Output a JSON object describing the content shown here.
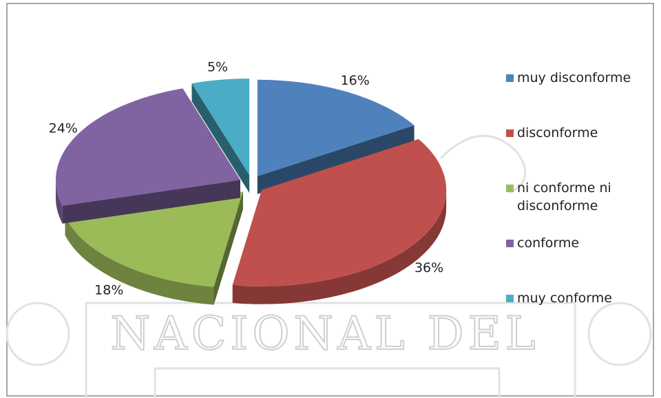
{
  "chart_data": {
    "type": "pie",
    "categories": [
      "muy disconforme",
      "disconforme",
      "ni conforme ni disconforme",
      "conforme",
      "muy conforme"
    ],
    "values": [
      16,
      36,
      18,
      24,
      5
    ],
    "value_labels": [
      "16%",
      "36%",
      "18%",
      "24%",
      "5%"
    ],
    "colors": [
      "#4f81bd",
      "#c0504d",
      "#9bbb59",
      "#8064a2",
      "#4bacc6"
    ],
    "legend": "right",
    "watermark": "NACIONAL DEL"
  }
}
